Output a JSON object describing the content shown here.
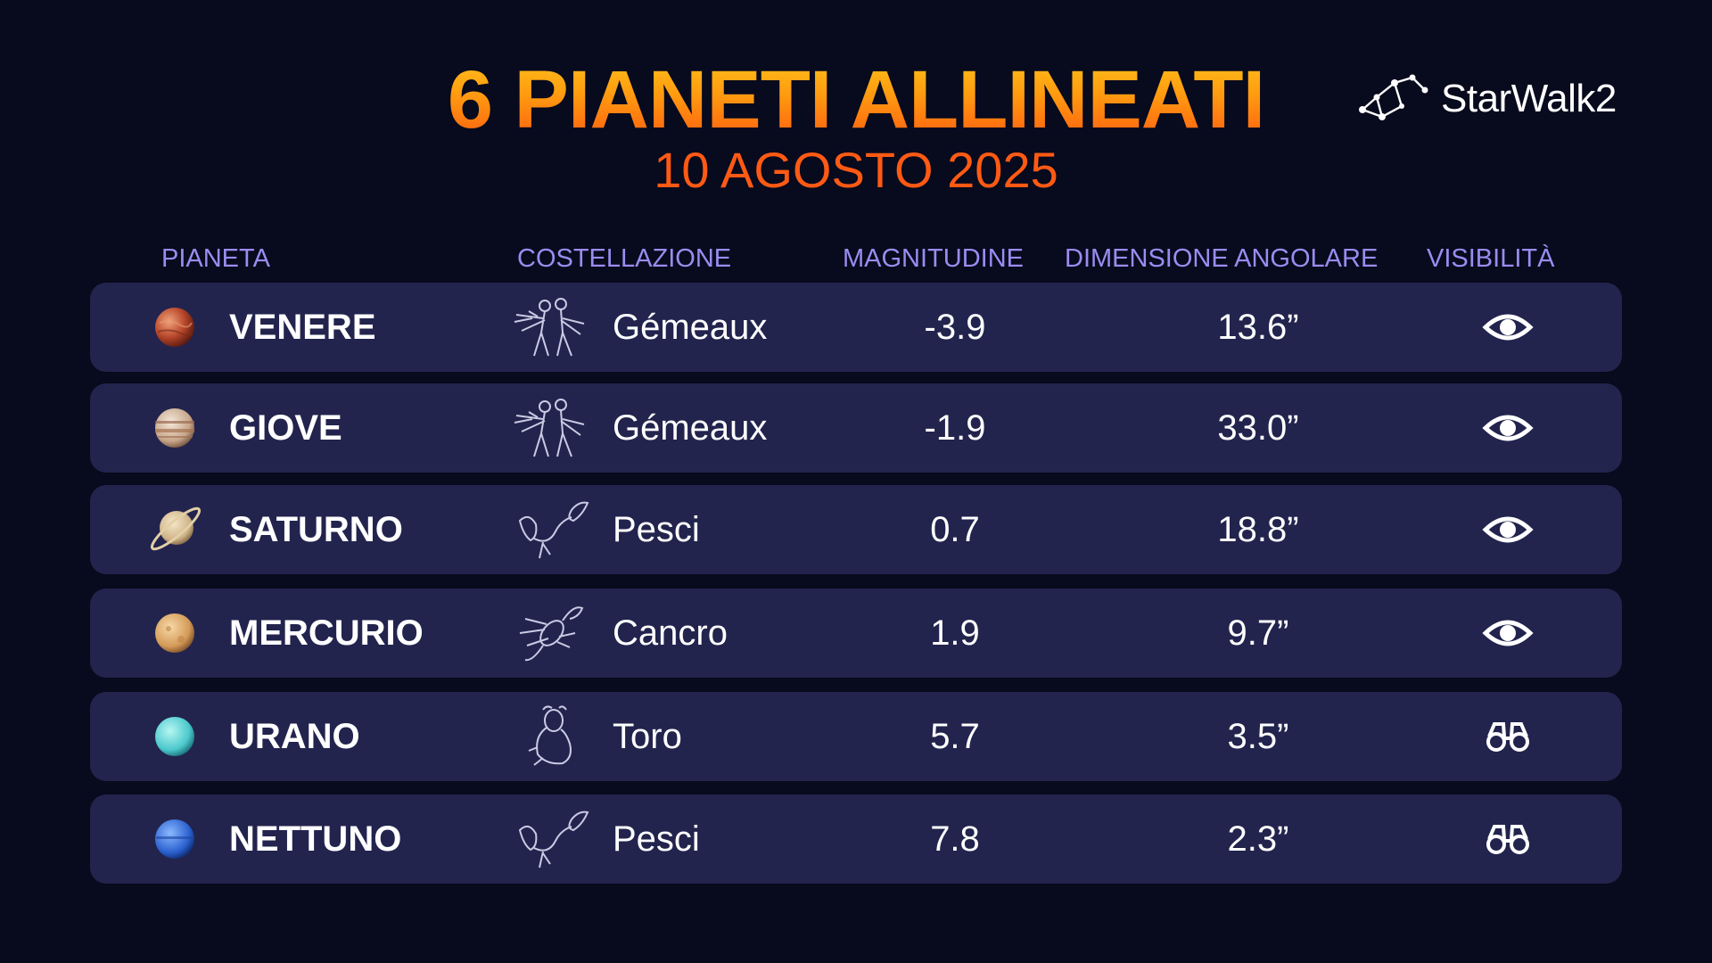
{
  "title": "6 PIANETI ALLINEATI",
  "subtitle": "10 AGOSTO 2025",
  "logo": {
    "text": "StarWalk2",
    "icon": "constellation-logo-icon"
  },
  "headers": {
    "planet": "PIANETA",
    "constellation": "COSTELLAZIONE",
    "magnitude": "MAGNITUDINE",
    "angular_size": "DIMENSIONE ANGOLARE",
    "visibility": "VISIBILITÀ"
  },
  "rows": [
    {
      "planet": "VENERE",
      "planet_icon": "venus-icon",
      "constellation": "Gémeaux",
      "constellation_icon": "gemini-icon",
      "magnitude": "-3.9",
      "angular_size": "13.6”",
      "visibility_icon": "eye-icon"
    },
    {
      "planet": "GIOVE",
      "planet_icon": "jupiter-icon",
      "constellation": "Gémeaux",
      "constellation_icon": "gemini-icon",
      "magnitude": "-1.9",
      "angular_size": "33.0”",
      "visibility_icon": "eye-icon"
    },
    {
      "planet": "SATURNO",
      "planet_icon": "saturn-icon",
      "constellation": "Pesci",
      "constellation_icon": "pisces-icon",
      "magnitude": "0.7",
      "angular_size": "18.8”",
      "visibility_icon": "eye-icon"
    },
    {
      "planet": "MERCURIO",
      "planet_icon": "mercury-icon",
      "constellation": "Cancro",
      "constellation_icon": "cancer-icon",
      "magnitude": "1.9",
      "angular_size": "9.7”",
      "visibility_icon": "eye-icon"
    },
    {
      "planet": "URANO",
      "planet_icon": "uranus-icon",
      "constellation": "Toro",
      "constellation_icon": "taurus-icon",
      "magnitude": "5.7",
      "angular_size": "3.5”",
      "visibility_icon": "binoculars-icon"
    },
    {
      "planet": "NETTUNO",
      "planet_icon": "neptune-icon",
      "constellation": "Pesci",
      "constellation_icon": "pisces-icon",
      "magnitude": "7.8",
      "angular_size": "2.3”",
      "visibility_icon": "binoculars-icon"
    }
  ],
  "colors": {
    "background": "#080a1d",
    "row": "#22244e",
    "header_text": "#9a8cf0",
    "title_gradient_top": "#ffc21a",
    "title_gradient_bottom": "#ff5a10",
    "subtitle": "#ff5a14"
  }
}
